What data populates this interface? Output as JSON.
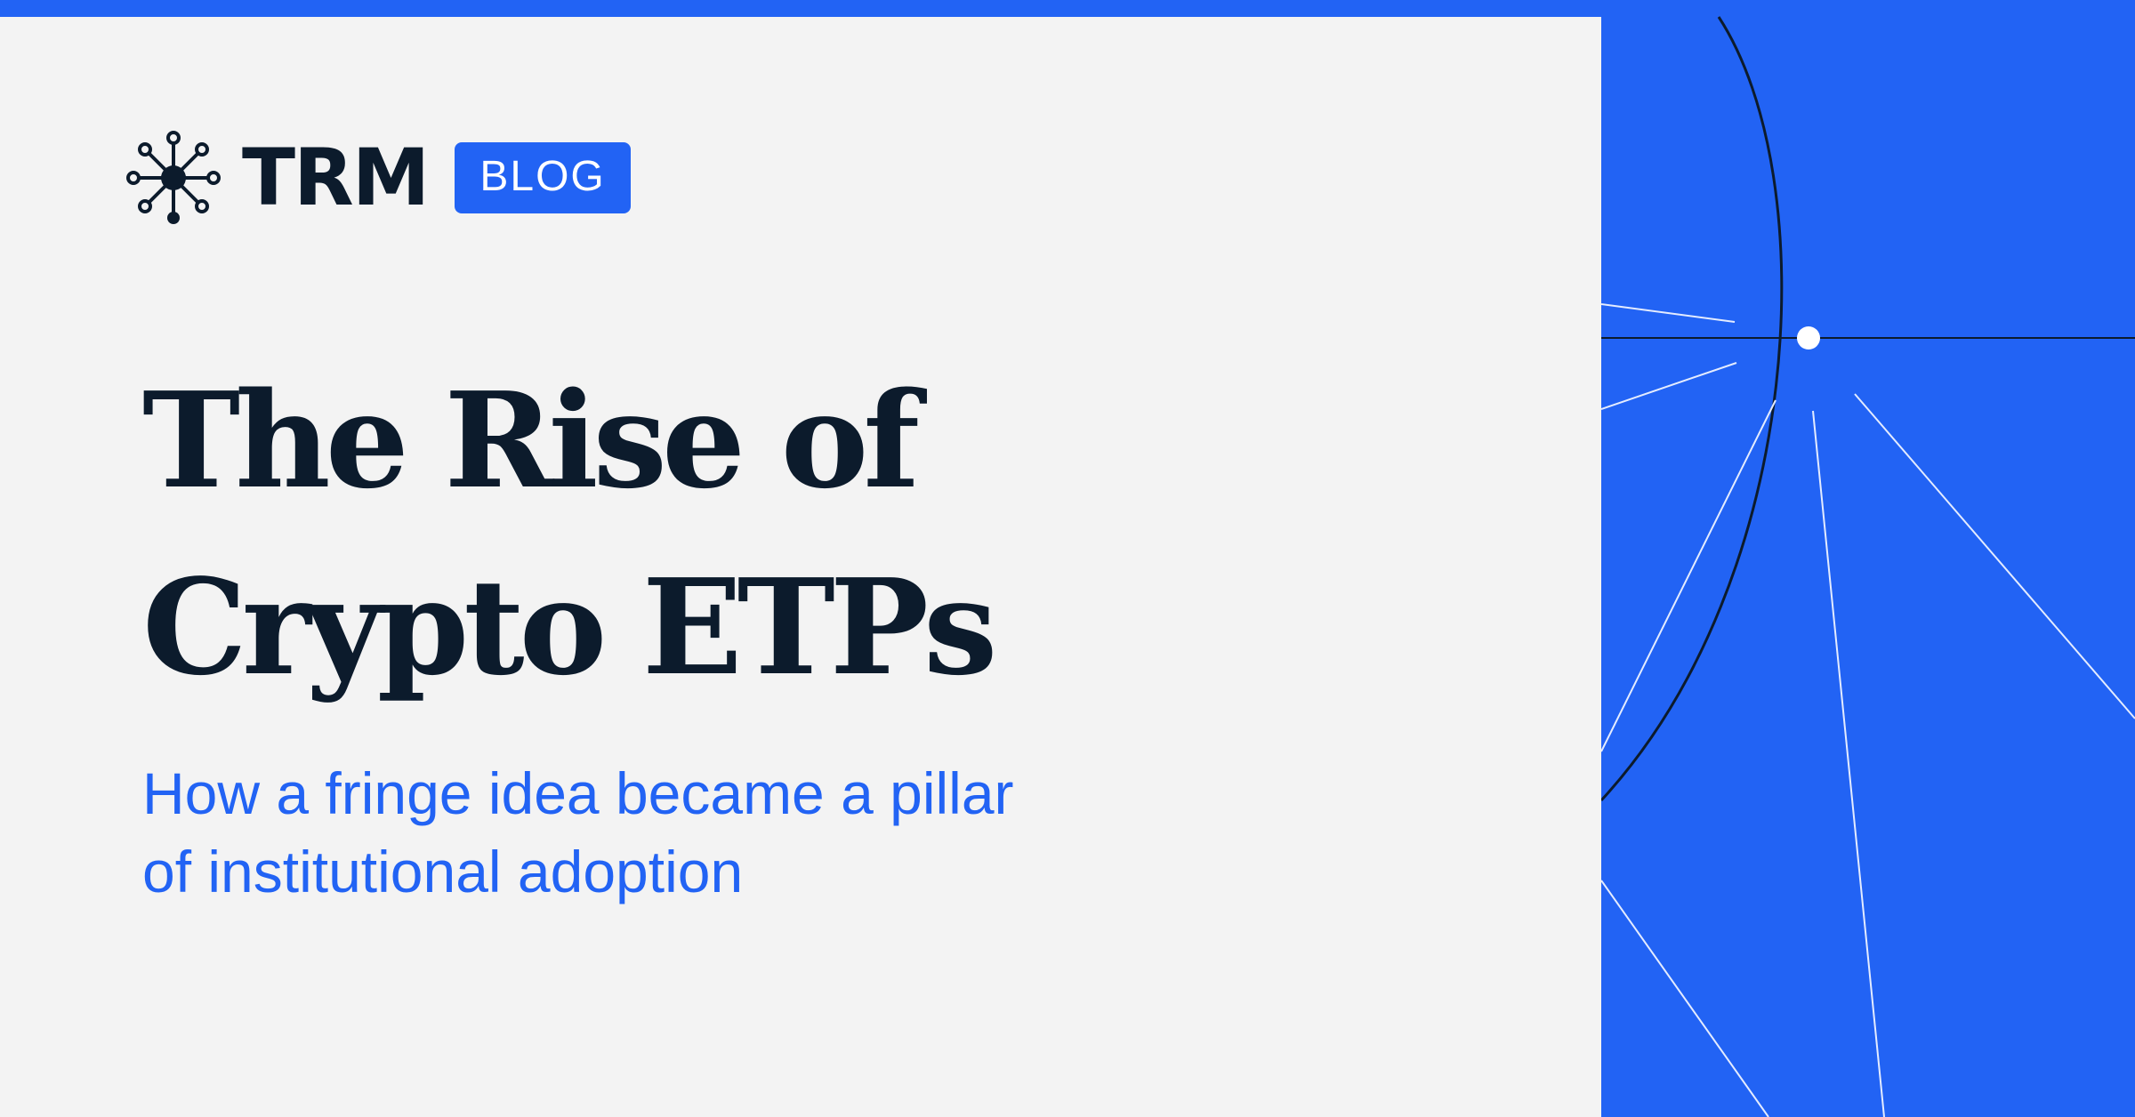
{
  "brand": {
    "name": "TRM",
    "badge": "BLOG",
    "logo_icon": "network-node-icon"
  },
  "headline": {
    "line1": "The Rise of",
    "line2": "Crypto ETPs"
  },
  "subtitle": {
    "line1": "How a fringe idea became a pillar",
    "line2": "of institutional adoption"
  },
  "colors": {
    "accent": "#2263f4",
    "text_dark": "#0c1b2c",
    "background": "#f3f3f3",
    "line_light": "#dce6ff"
  }
}
